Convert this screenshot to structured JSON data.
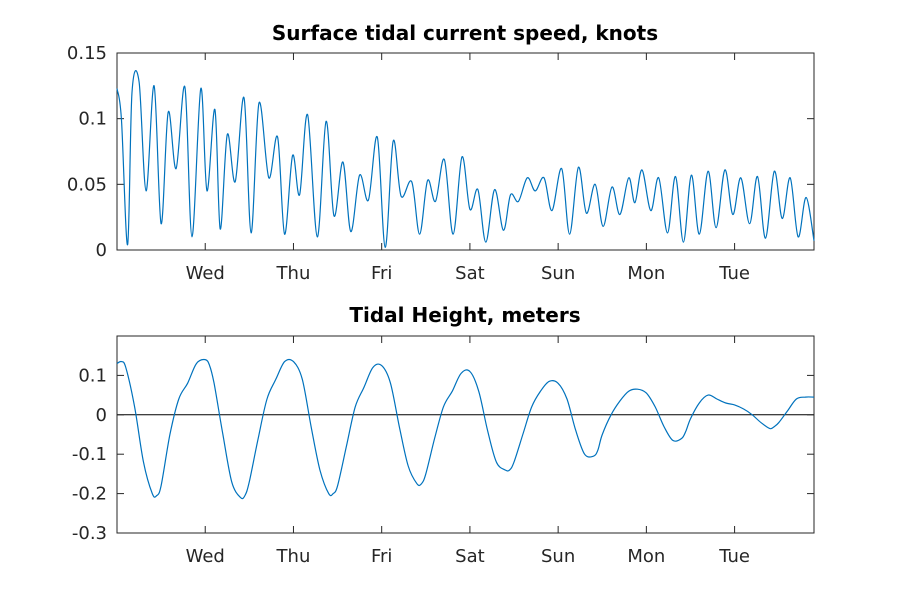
{
  "chart_data": [
    {
      "type": "line",
      "title": "Surface tidal current speed, knots",
      "xlabel": "",
      "ylabel": "",
      "ylim": [
        0,
        0.15
      ],
      "xlim": [
        0,
        7.9
      ],
      "y_ticks": [
        "0",
        "0.05",
        "0.1",
        "0.15"
      ],
      "y_tick_values": [
        0,
        0.05,
        0.1,
        0.15
      ],
      "x_ticks": [
        "Wed",
        "Thu",
        "Fri",
        "Sat",
        "Sun",
        "Mon",
        "Tue"
      ],
      "x_tick_values": [
        1,
        2,
        3,
        4,
        5,
        6,
        7
      ],
      "grid": false,
      "line_color": "#0072BD",
      "series": [
        {
          "x": [
            0.0,
            0.05,
            0.12,
            0.17,
            0.25,
            0.33,
            0.42,
            0.5,
            0.58,
            0.67,
            0.77,
            0.85,
            0.95,
            1.02,
            1.11,
            1.17,
            1.25,
            1.34,
            1.44,
            1.52,
            1.61,
            1.72,
            1.82,
            1.9,
            1.99,
            2.07,
            2.16,
            2.27,
            2.37,
            2.46,
            2.56,
            2.65,
            2.75,
            2.85,
            2.95,
            3.04,
            3.13,
            3.22,
            3.34,
            3.43,
            3.52,
            3.61,
            3.71,
            3.81,
            3.91,
            4.0,
            4.09,
            4.18,
            4.28,
            4.38,
            4.46,
            4.55,
            4.65,
            4.74,
            4.84,
            4.93,
            5.04,
            5.13,
            5.23,
            5.32,
            5.42,
            5.51,
            5.61,
            5.7,
            5.8,
            5.87,
            5.95,
            6.05,
            6.14,
            6.24,
            6.33,
            6.42,
            6.51,
            6.6,
            6.7,
            6.79,
            6.89,
            6.98,
            7.07,
            7.17,
            7.26,
            7.35,
            7.45,
            7.54,
            7.63,
            7.72,
            7.81,
            7.9
          ],
          "y": [
            0.123,
            0.1,
            0.004,
            0.12,
            0.128,
            0.045,
            0.125,
            0.02,
            0.105,
            0.062,
            0.124,
            0.01,
            0.123,
            0.045,
            0.107,
            0.016,
            0.088,
            0.052,
            0.116,
            0.013,
            0.112,
            0.055,
            0.086,
            0.012,
            0.072,
            0.042,
            0.103,
            0.01,
            0.098,
            0.026,
            0.067,
            0.014,
            0.057,
            0.038,
            0.086,
            0.002,
            0.083,
            0.041,
            0.052,
            0.012,
            0.053,
            0.037,
            0.069,
            0.012,
            0.071,
            0.031,
            0.046,
            0.006,
            0.046,
            0.015,
            0.042,
            0.037,
            0.055,
            0.045,
            0.055,
            0.03,
            0.062,
            0.012,
            0.063,
            0.028,
            0.05,
            0.018,
            0.048,
            0.027,
            0.055,
            0.036,
            0.061,
            0.03,
            0.055,
            0.013,
            0.056,
            0.006,
            0.057,
            0.012,
            0.06,
            0.017,
            0.061,
            0.027,
            0.055,
            0.02,
            0.056,
            0.009,
            0.06,
            0.024,
            0.055,
            0.01,
            0.04,
            0.007
          ],
          "values_note": ""
        }
      ]
    },
    {
      "type": "line",
      "title": "Tidal Height, meters",
      "xlabel": "",
      "ylabel": "",
      "ylim": [
        -0.3,
        0.2
      ],
      "xlim": [
        0,
        7.9
      ],
      "y_ticks": [
        "-0.3",
        "-0.2",
        "-0.1",
        "0",
        "0.1"
      ],
      "y_tick_values": [
        -0.3,
        -0.2,
        -0.1,
        0,
        0.1
      ],
      "x_ticks": [
        "Wed",
        "Thu",
        "Fri",
        "Sat",
        "Sun",
        "Mon",
        "Tue"
      ],
      "x_tick_values": [
        1,
        2,
        3,
        4,
        5,
        6,
        7
      ],
      "grid": false,
      "zero_line": true,
      "line_color": "#0072BD",
      "series": [
        {
          "x": [
            0.0,
            0.05,
            0.1,
            0.2,
            0.3,
            0.4,
            0.45,
            0.5,
            0.6,
            0.7,
            0.8,
            0.9,
            1.0,
            1.05,
            1.1,
            1.2,
            1.3,
            1.4,
            1.45,
            1.5,
            1.6,
            1.7,
            1.8,
            1.9,
            2.0,
            2.1,
            2.2,
            2.3,
            2.4,
            2.45,
            2.5,
            2.6,
            2.7,
            2.8,
            2.9,
            3.0,
            3.1,
            3.2,
            3.3,
            3.4,
            3.45,
            3.5,
            3.6,
            3.7,
            3.8,
            3.9,
            4.0,
            4.1,
            4.2,
            4.3,
            4.4,
            4.45,
            4.5,
            4.6,
            4.7,
            4.8,
            4.9,
            5.0,
            5.1,
            5.2,
            5.3,
            5.4,
            5.45,
            5.5,
            5.6,
            5.7,
            5.8,
            5.9,
            6.0,
            6.1,
            6.2,
            6.3,
            6.4,
            6.45,
            6.5,
            6.6,
            6.7,
            6.8,
            6.9,
            7.0,
            7.1,
            7.2,
            7.3,
            7.4,
            7.45,
            7.5,
            7.6,
            7.7,
            7.8,
            7.9
          ],
          "y": [
            0.13,
            0.135,
            0.12,
            0.02,
            -0.12,
            -0.2,
            -0.205,
            -0.18,
            -0.05,
            0.04,
            0.08,
            0.13,
            0.14,
            0.125,
            0.08,
            -0.05,
            -0.17,
            -0.21,
            -0.205,
            -0.17,
            -0.06,
            0.04,
            0.09,
            0.135,
            0.135,
            0.09,
            -0.03,
            -0.14,
            -0.2,
            -0.2,
            -0.18,
            -0.08,
            0.02,
            0.07,
            0.12,
            0.125,
            0.08,
            -0.03,
            -0.13,
            -0.175,
            -0.175,
            -0.15,
            -0.06,
            0.02,
            0.06,
            0.105,
            0.11,
            0.06,
            -0.04,
            -0.12,
            -0.14,
            -0.14,
            -0.12,
            -0.05,
            0.02,
            0.06,
            0.085,
            0.08,
            0.04,
            -0.04,
            -0.1,
            -0.105,
            -0.09,
            -0.05,
            0.0,
            0.035,
            0.06,
            0.065,
            0.055,
            0.02,
            -0.03,
            -0.065,
            -0.06,
            -0.04,
            -0.01,
            0.03,
            0.05,
            0.04,
            0.03,
            0.025,
            0.015,
            0.0,
            -0.02,
            -0.035,
            -0.03,
            -0.02,
            0.01,
            0.04,
            0.045,
            0.045
          ],
          "values_note": ""
        }
      ]
    }
  ]
}
